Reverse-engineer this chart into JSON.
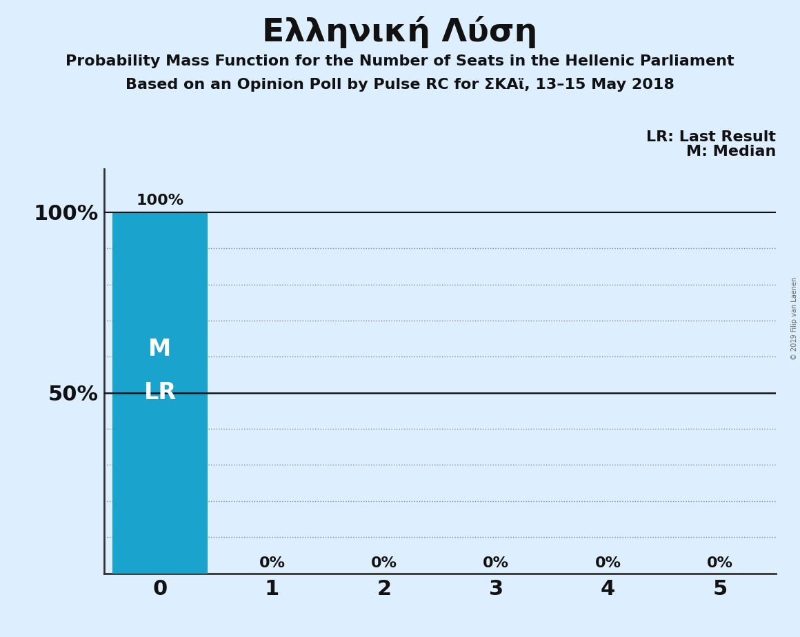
{
  "title": "Ελληνική Λύση",
  "subtitle1": "Probability Mass Function for the Number of Seats in the Hellenic Parliament",
  "subtitle2": "Based on an Opinion Poll by Pulse RC for ΣΚΑϊ, 13–15 May 2018",
  "watermark": "© 2019 Filip van Laenen",
  "categories": [
    0,
    1,
    2,
    3,
    4,
    5
  ],
  "values": [
    1.0,
    0.0,
    0.0,
    0.0,
    0.0,
    0.0
  ],
  "bar_color": "#1aa3cc",
  "bar_label_100": "100%",
  "bar_label_0": "0%",
  "median_val": 0,
  "last_result_val": 0,
  "legend_lr": "LR: Last Result",
  "legend_m": "M: Median",
  "bg_color": "#ddeeff",
  "ytick_labels": [
    "100%",
    "50%"
  ],
  "ytick_values": [
    1.0,
    0.5
  ],
  "grid_lines": [
    0.1,
    0.2,
    0.3,
    0.4,
    0.6,
    0.7,
    0.8,
    0.9
  ],
  "solid_line_y": 0.5,
  "top_line_y": 1.0,
  "ylim": [
    0.0,
    1.12
  ],
  "xlim": [
    -0.5,
    5.5
  ],
  "title_fontsize": 34,
  "subtitle_fontsize": 16,
  "bar_label_fontsize": 16,
  "ytick_fontsize": 22,
  "xtick_fontsize": 22,
  "inner_label_fontsize": 24,
  "legend_fontsize": 16,
  "dotted_line_color": "#888888",
  "solid_line_color": "#111111",
  "spine_color": "#333333",
  "text_color": "#111111"
}
